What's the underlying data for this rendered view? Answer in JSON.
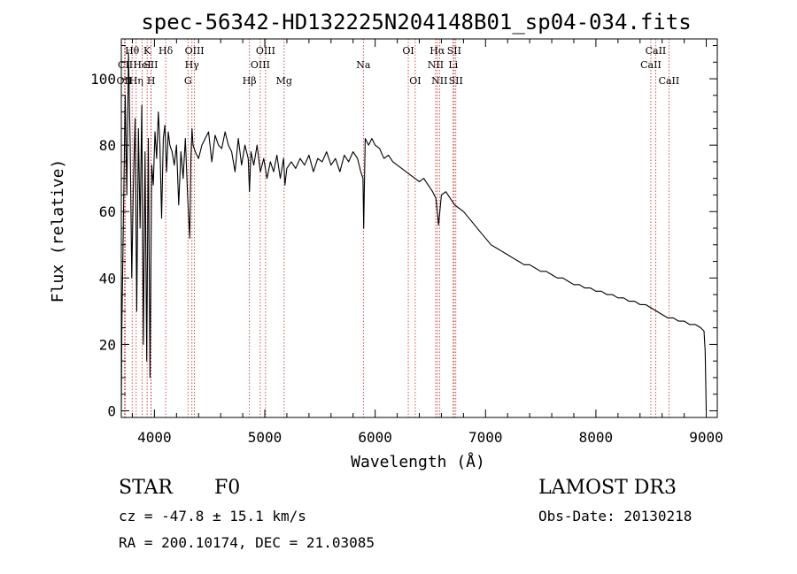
{
  "chart_data": {
    "type": "line",
    "title": "spec-56342-HD132225N204148B01_sp04-034.fits",
    "xlabel": "Wavelength (Å)",
    "ylabel": "Flux (relative)",
    "xlim": [
      3700,
      9100
    ],
    "ylim": [
      -2,
      112
    ],
    "x_ticks": [
      4000,
      5000,
      6000,
      7000,
      8000,
      9000
    ],
    "x_tick_labels": [
      "4000",
      "5000",
      "6000",
      "7000",
      "8000",
      "9000"
    ],
    "y_ticks": [
      0,
      20,
      40,
      60,
      80,
      100
    ],
    "y_tick_labels": [
      "0",
      "20",
      "40",
      "60",
      "80",
      "100"
    ],
    "series": [
      {
        "name": "spectrum",
        "x": [
          3700,
          3705,
          3720,
          3735,
          3750,
          3765,
          3780,
          3795,
          3810,
          3825,
          3840,
          3855,
          3870,
          3885,
          3900,
          3915,
          3930,
          3945,
          3960,
          3975,
          3990,
          4005,
          4020,
          4035,
          4050,
          4065,
          4080,
          4095,
          4110,
          4125,
          4140,
          4160,
          4180,
          4200,
          4220,
          4240,
          4260,
          4280,
          4300,
          4320,
          4330,
          4340,
          4350,
          4370,
          4400,
          4430,
          4460,
          4490,
          4520,
          4550,
          4580,
          4610,
          4640,
          4670,
          4700,
          4730,
          4760,
          4790,
          4820,
          4850,
          4861,
          4875,
          4900,
          4930,
          4960,
          4990,
          5020,
          5050,
          5080,
          5110,
          5140,
          5170,
          5183,
          5200,
          5240,
          5280,
          5320,
          5360,
          5400,
          5440,
          5480,
          5520,
          5560,
          5600,
          5640,
          5680,
          5720,
          5760,
          5800,
          5840,
          5870,
          5890,
          5896,
          5910,
          5940,
          5970,
          6000,
          6040,
          6080,
          6120,
          6160,
          6200,
          6240,
          6280,
          6320,
          6360,
          6400,
          6440,
          6480,
          6520,
          6550,
          6563,
          6575,
          6600,
          6640,
          6680,
          6720,
          6760,
          6800,
          6850,
          6900,
          6950,
          7000,
          7050,
          7100,
          7150,
          7200,
          7250,
          7300,
          7350,
          7400,
          7450,
          7500,
          7550,
          7600,
          7650,
          7700,
          7750,
          7800,
          7850,
          7900,
          7950,
          8000,
          8050,
          8100,
          8150,
          8200,
          8250,
          8300,
          8350,
          8400,
          8450,
          8500,
          8550,
          8600,
          8650,
          8700,
          8750,
          8800,
          8850,
          8900,
          8950,
          8980,
          8990,
          9000
        ],
        "values": [
          0,
          25,
          60,
          95,
          65,
          108,
          80,
          40,
          70,
          88,
          30,
          85,
          55,
          92,
          20,
          78,
          15,
          82,
          10,
          74,
          68,
          84,
          76,
          90,
          80,
          58,
          82,
          86,
          72,
          84,
          80,
          78,
          74,
          80,
          62,
          78,
          70,
          82,
          65,
          52,
          75,
          85,
          80,
          78,
          76,
          80,
          82,
          84,
          75,
          83,
          80,
          79,
          84,
          80,
          78,
          72,
          82,
          74,
          80,
          76,
          66,
          78,
          74,
          80,
          72,
          76,
          70,
          75,
          72,
          77,
          70,
          76,
          68,
          73,
          75,
          73,
          76,
          74,
          77,
          72,
          76,
          75,
          78,
          74,
          76,
          72,
          77,
          75,
          78,
          76,
          72,
          70,
          55,
          82,
          80,
          82,
          80,
          79,
          76,
          77,
          75,
          74,
          73,
          72,
          71,
          70,
          69,
          70,
          68,
          66,
          64,
          60,
          56,
          65,
          66,
          64,
          62,
          61,
          60,
          58,
          56,
          54,
          52,
          50,
          49,
          48,
          47,
          46,
          45,
          44,
          44,
          43,
          42,
          42,
          41,
          40,
          40,
          39,
          38,
          38,
          37,
          37,
          36,
          36,
          35,
          35,
          34,
          34,
          33,
          33,
          32,
          32,
          31,
          30,
          29,
          28,
          28,
          27,
          27,
          26,
          26,
          25,
          24,
          18,
          0
        ]
      }
    ],
    "lines": [
      {
        "label": "Hθ",
        "x": 3798,
        "row": 1
      },
      {
        "label": "OII",
        "x": 3727,
        "row": 3
      },
      {
        "label": "CII",
        "x": 3737,
        "row": 2
      },
      {
        "label": "Hη",
        "x": 3835,
        "row": 3
      },
      {
        "label": "HeI",
        "x": 3889,
        "row": 2
      },
      {
        "label": "K",
        "x": 3934,
        "row": 1
      },
      {
        "label": "SII",
        "x": 3968,
        "row": 2
      },
      {
        "label": "H",
        "x": 3970,
        "row": 3
      },
      {
        "label": "Hδ",
        "x": 4102,
        "row": 1
      },
      {
        "label": "OIII",
        "x": 4363,
        "row": 1
      },
      {
        "label": "Hγ",
        "x": 4340,
        "row": 2
      },
      {
        "label": "G",
        "x": 4304,
        "row": 3
      },
      {
        "label": "Hβ",
        "x": 4861,
        "row": 3
      },
      {
        "label": "OIII",
        "x": 5007,
        "row": 1
      },
      {
        "label": "OIII",
        "x": 4959,
        "row": 2
      },
      {
        "label": "Mg",
        "x": 5175,
        "row": 3
      },
      {
        "label": "Na",
        "x": 5893,
        "row": 2
      },
      {
        "label": "OI",
        "x": 6300,
        "row": 1
      },
      {
        "label": "OI",
        "x": 6363,
        "row": 3
      },
      {
        "label": "Hα",
        "x": 6563,
        "row": 1
      },
      {
        "label": "NII",
        "x": 6548,
        "row": 2
      },
      {
        "label": "NII",
        "x": 6583,
        "row": 3
      },
      {
        "label": "SII",
        "x": 6716,
        "row": 1
      },
      {
        "label": "Li",
        "x": 6707,
        "row": 2
      },
      {
        "label": "SII",
        "x": 6731,
        "row": 3
      },
      {
        "label": "CaII",
        "x": 8542,
        "row": 1
      },
      {
        "label": "CaII",
        "x": 8498,
        "row": 2
      },
      {
        "label": "CaII",
        "x": 8662,
        "row": 3
      }
    ]
  },
  "info": {
    "object_class": "STAR",
    "subclass": "F0",
    "survey": "LAMOST DR3",
    "cz": "cz = -47.8 ± 15.1 km/s",
    "obs_date": "Obs-Date: 20130218",
    "coords": "RA = 200.10174, DEC =  21.03085"
  }
}
